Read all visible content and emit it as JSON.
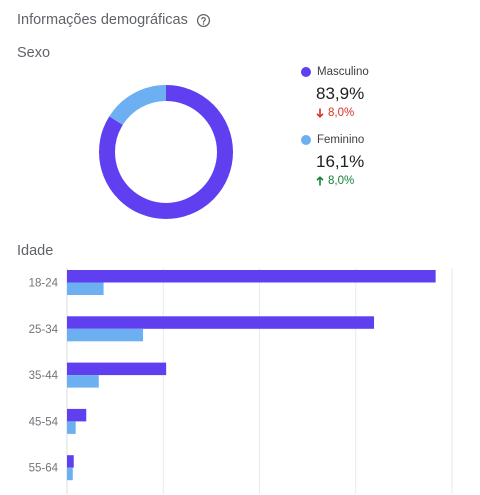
{
  "card": {
    "title": "Informações demográficas",
    "help_icon": "help-circle-icon"
  },
  "sexo": {
    "title": "Sexo",
    "items": [
      {
        "label": "Masculino",
        "value": "83,9%",
        "share": 83.9,
        "delta": "8,0%",
        "direction": "down",
        "color": "#5f3ff0"
      },
      {
        "label": "Feminino",
        "value": "16,1%",
        "share": 16.1,
        "delta": "8,0%",
        "direction": "up",
        "color": "#6cb0f2"
      }
    ]
  },
  "idade": {
    "title": "Idade"
  },
  "chart_data": {
    "type": "bar",
    "orientation": "horizontal",
    "categories": [
      "18-24",
      "25-34",
      "35-44",
      "45-54",
      "55-64"
    ],
    "series": [
      {
        "name": "Masculino",
        "color": "#5f3ff0",
        "values": [
          38.3,
          31.9,
          10.3,
          2.0,
          0.7
        ]
      },
      {
        "name": "Feminino",
        "color": "#6cb0f2",
        "values": [
          3.8,
          7.9,
          3.3,
          0.9,
          0.6
        ]
      }
    ],
    "xlim": [
      0,
      40
    ],
    "grid": true
  }
}
